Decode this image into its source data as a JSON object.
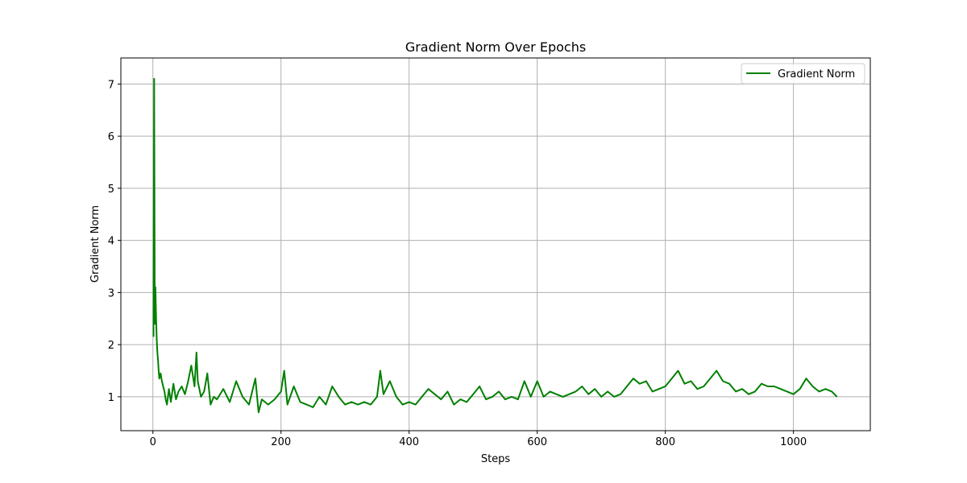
{
  "chart_data": {
    "type": "line",
    "title": "Gradient Norm Over Epochs",
    "xlabel": "Steps",
    "ylabel": "Gradient Norm",
    "xlim": [
      -50,
      1120
    ],
    "ylim": [
      0.35,
      7.5
    ],
    "xticks": [
      0,
      200,
      400,
      600,
      800,
      1000
    ],
    "yticks": [
      1,
      2,
      3,
      4,
      5,
      6,
      7
    ],
    "grid": true,
    "legend_position": "top-right",
    "series": [
      {
        "name": "Gradient Norm",
        "color": "#008000",
        "x": [
          1,
          2,
          3,
          4,
          5,
          6,
          7,
          8,
          9,
          10,
          12,
          14,
          16,
          18,
          20,
          22,
          25,
          28,
          32,
          36,
          40,
          45,
          50,
          55,
          60,
          65,
          68,
          70,
          75,
          80,
          85,
          90,
          95,
          100,
          110,
          120,
          130,
          140,
          150,
          160,
          165,
          170,
          180,
          190,
          200,
          205,
          210,
          220,
          230,
          240,
          250,
          260,
          270,
          280,
          290,
          300,
          310,
          320,
          330,
          340,
          350,
          355,
          360,
          370,
          380,
          390,
          400,
          410,
          420,
          430,
          440,
          450,
          460,
          470,
          480,
          490,
          500,
          510,
          520,
          530,
          540,
          550,
          560,
          570,
          580,
          590,
          600,
          610,
          620,
          630,
          640,
          650,
          660,
          670,
          680,
          690,
          700,
          710,
          720,
          730,
          740,
          750,
          760,
          770,
          780,
          790,
          800,
          810,
          820,
          830,
          840,
          850,
          860,
          870,
          880,
          890,
          900,
          910,
          920,
          930,
          940,
          950,
          960,
          970,
          980,
          990,
          1000,
          1010,
          1020,
          1030,
          1040,
          1050,
          1060,
          1068
        ],
        "y": [
          2.15,
          7.1,
          2.4,
          3.1,
          2.5,
          2.1,
          1.85,
          1.7,
          1.5,
          1.35,
          1.45,
          1.3,
          1.2,
          1.1,
          0.95,
          0.85,
          1.15,
          0.9,
          1.25,
          0.95,
          1.1,
          1.2,
          1.05,
          1.3,
          1.6,
          1.2,
          1.85,
          1.3,
          1.0,
          1.1,
          1.45,
          0.85,
          1.0,
          0.95,
          1.15,
          0.9,
          1.3,
          1.0,
          0.85,
          1.35,
          0.7,
          0.95,
          0.85,
          0.95,
          1.1,
          1.5,
          0.85,
          1.2,
          0.9,
          0.85,
          0.8,
          1.0,
          0.85,
          1.2,
          1.0,
          0.85,
          0.9,
          0.85,
          0.9,
          0.85,
          1.0,
          1.5,
          1.05,
          1.3,
          1.0,
          0.85,
          0.9,
          0.85,
          1.0,
          1.15,
          1.05,
          0.95,
          1.1,
          0.85,
          0.95,
          0.9,
          1.05,
          1.2,
          0.95,
          1.0,
          1.1,
          0.95,
          1.0,
          0.95,
          1.3,
          1.0,
          1.3,
          1.0,
          1.1,
          1.05,
          1.0,
          1.05,
          1.1,
          1.2,
          1.05,
          1.15,
          1.0,
          1.1,
          1.0,
          1.05,
          1.2,
          1.35,
          1.25,
          1.3,
          1.1,
          1.15,
          1.2,
          1.35,
          1.5,
          1.25,
          1.3,
          1.15,
          1.2,
          1.35,
          1.5,
          1.3,
          1.25,
          1.1,
          1.15,
          1.05,
          1.1,
          1.25,
          1.2,
          1.2,
          1.15,
          1.1,
          1.05,
          1.15,
          1.35,
          1.2,
          1.1,
          1.15,
          1.1,
          1.0
        ]
      }
    ]
  }
}
